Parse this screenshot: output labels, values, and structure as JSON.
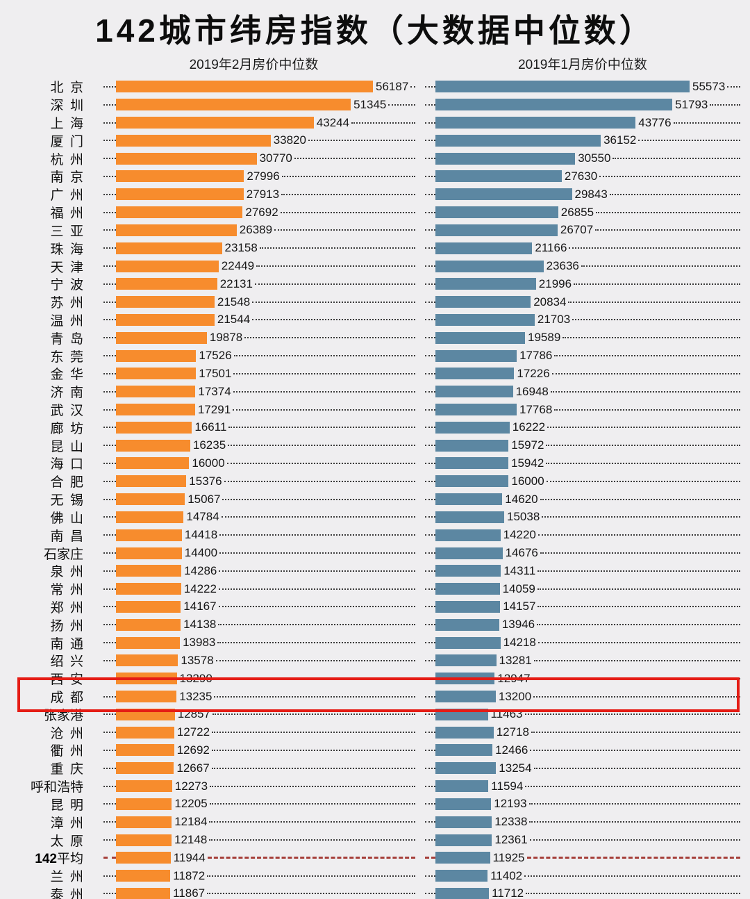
{
  "title": "142城市纬房指数（大数据中位数）",
  "columns": {
    "left_header": "2019年2月房价中位数",
    "right_header": "2019年1月房价中位数"
  },
  "colors": {
    "feb_bar": "#f78c2d",
    "jan_bar": "#5c87a2",
    "background": "#efeef0",
    "highlight_box": "#e51c15",
    "average_dash": "#a63f3a"
  },
  "chart_data": {
    "type": "bar",
    "orientation": "horizontal",
    "title": "142城市纬房指数（大数据中位数）",
    "series": [
      {
        "name": "2019年2月房价中位数",
        "key": "feb",
        "color": "#f78c2d"
      },
      {
        "name": "2019年1月房价中位数",
        "key": "jan",
        "color": "#5c87a2"
      }
    ],
    "xlim": [
      0,
      57000
    ],
    "grid": "dotted-leader-lines",
    "legend_position": "column-headers",
    "highlight": {
      "cities": [
        "西安",
        "成都"
      ],
      "box_color": "#e51c15"
    },
    "average_row": {
      "label": "142平均",
      "feb": 11944,
      "jan": 11925,
      "line_style": "dashed",
      "line_color": "#a63f3a"
    },
    "rows": [
      {
        "city": "北京",
        "feb": 56187,
        "jan": 55573
      },
      {
        "city": "深圳",
        "feb": 51345,
        "jan": 51793
      },
      {
        "city": "上海",
        "feb": 43244,
        "jan": 43776
      },
      {
        "city": "厦门",
        "feb": 33820,
        "jan": 36152
      },
      {
        "city": "杭州",
        "feb": 30770,
        "jan": 30550
      },
      {
        "city": "南京",
        "feb": 27996,
        "jan": 27630
      },
      {
        "city": "广州",
        "feb": 27913,
        "jan": 29843
      },
      {
        "city": "福州",
        "feb": 27692,
        "jan": 26855
      },
      {
        "city": "三亚",
        "feb": 26389,
        "jan": 26707
      },
      {
        "city": "珠海",
        "feb": 23158,
        "jan": 21166
      },
      {
        "city": "天津",
        "feb": 22449,
        "jan": 23636
      },
      {
        "city": "宁波",
        "feb": 22131,
        "jan": 21996
      },
      {
        "city": "苏州",
        "feb": 21548,
        "jan": 20834
      },
      {
        "city": "温州",
        "feb": 21544,
        "jan": 21703
      },
      {
        "city": "青岛",
        "feb": 19878,
        "jan": 19589
      },
      {
        "city": "东莞",
        "feb": 17526,
        "jan": 17786
      },
      {
        "city": "金华",
        "feb": 17501,
        "jan": 17226
      },
      {
        "city": "济南",
        "feb": 17374,
        "jan": 16948
      },
      {
        "city": "武汉",
        "feb": 17291,
        "jan": 17768
      },
      {
        "city": "廊坊",
        "feb": 16611,
        "jan": 16222
      },
      {
        "city": "昆山",
        "feb": 16235,
        "jan": 15972
      },
      {
        "city": "海口",
        "feb": 16000,
        "jan": 15942
      },
      {
        "city": "合肥",
        "feb": 15376,
        "jan": 16000
      },
      {
        "city": "无锡",
        "feb": 15067,
        "jan": 14620
      },
      {
        "city": "佛山",
        "feb": 14784,
        "jan": 15038
      },
      {
        "city": "南昌",
        "feb": 14418,
        "jan": 14220
      },
      {
        "city": "石家庄",
        "feb": 14400,
        "jan": 14676
      },
      {
        "city": "泉州",
        "feb": 14286,
        "jan": 14311
      },
      {
        "city": "常州",
        "feb": 14222,
        "jan": 14059
      },
      {
        "city": "郑州",
        "feb": 14167,
        "jan": 14157
      },
      {
        "city": "扬州",
        "feb": 14138,
        "jan": 13946
      },
      {
        "city": "南通",
        "feb": 13983,
        "jan": 14218
      },
      {
        "city": "绍兴",
        "feb": 13578,
        "jan": 13281
      },
      {
        "city": "西安",
        "feb": 13290,
        "jan": 12947
      },
      {
        "city": "成都",
        "feb": 13235,
        "jan": 13200
      },
      {
        "city": "张家港",
        "feb": 12857,
        "jan": 11463
      },
      {
        "city": "沧州",
        "feb": 12722,
        "jan": 12718
      },
      {
        "city": "衢州",
        "feb": 12692,
        "jan": 12466
      },
      {
        "city": "重庆",
        "feb": 12667,
        "jan": 13254
      },
      {
        "city": "呼和浩特",
        "feb": 12273,
        "jan": 11594
      },
      {
        "city": "昆明",
        "feb": 12205,
        "jan": 12193
      },
      {
        "city": "漳州",
        "feb": 12184,
        "jan": 12338
      },
      {
        "city": "太原",
        "feb": 12148,
        "jan": 12361
      },
      {
        "city": "142平均",
        "feb": 11944,
        "jan": 11925,
        "average": true
      },
      {
        "city": "兰州",
        "feb": 11872,
        "jan": 11402
      },
      {
        "city": "泰州",
        "feb": 11867,
        "jan": 11712
      }
    ]
  }
}
